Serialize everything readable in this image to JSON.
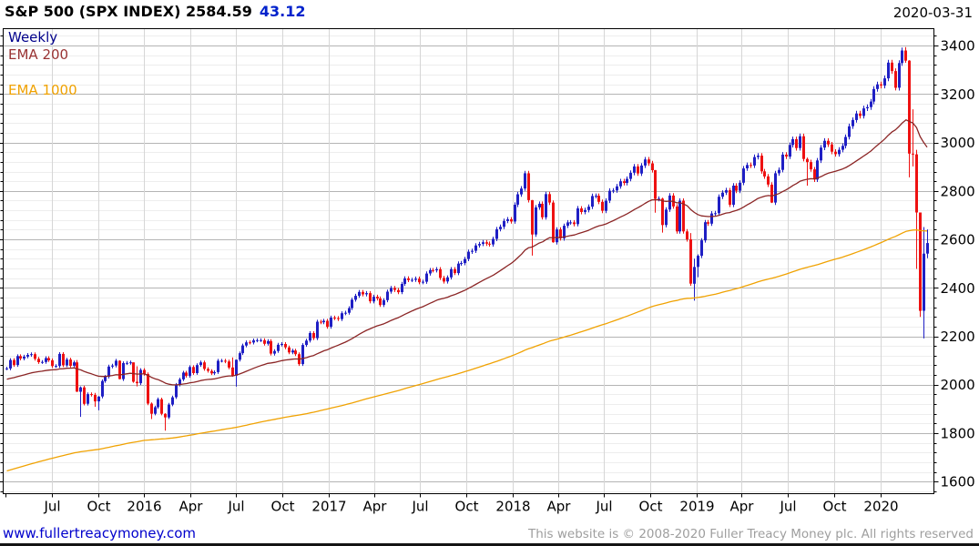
{
  "header": {
    "title_main": "S&P 500 (SPX INDEX) 2584.59",
    "change": "43.12",
    "change_color": "#0022cc",
    "date": "2020-03-31"
  },
  "legend": {
    "weekly": "Weekly",
    "ema200": "EMA 200",
    "ema1000": "EMA 1000"
  },
  "footer": {
    "link": "www.fullertreacymoney.com",
    "copyright": "This website is © 2008-2020 Fuller Treacy Money plc. All rights reserved"
  },
  "chart_data": {
    "type": "candlestick",
    "title": "S&P 500 (SPX INDEX)",
    "timeframe": "Weekly",
    "last_close": 2584.59,
    "change": 43.12,
    "start_date": "2015-04-03",
    "week_interval_days": 7,
    "y_axis": {
      "min": 1550,
      "max": 3470,
      "tick_minor": 40,
      "tick_major": 200,
      "labels": [
        1600,
        1800,
        2000,
        2200,
        2400,
        2600,
        2800,
        3000,
        3200,
        3400
      ]
    },
    "x_ticks": [
      {
        "label": "",
        "date": "2015-04-01"
      },
      {
        "label": "Jul",
        "date": "2015-07-01"
      },
      {
        "label": "Oct",
        "date": "2015-10-01"
      },
      {
        "label": "2016",
        "date": "2016-01-01"
      },
      {
        "label": "Apr",
        "date": "2016-04-01"
      },
      {
        "label": "Jul",
        "date": "2016-07-01"
      },
      {
        "label": "Oct",
        "date": "2016-10-01"
      },
      {
        "label": "2017",
        "date": "2017-01-01"
      },
      {
        "label": "Apr",
        "date": "2017-04-01"
      },
      {
        "label": "Jul",
        "date": "2017-07-01"
      },
      {
        "label": "Oct",
        "date": "2017-10-01"
      },
      {
        "label": "2018",
        "date": "2018-01-01"
      },
      {
        "label": "Apr",
        "date": "2018-04-01"
      },
      {
        "label": "Jul",
        "date": "2018-07-01"
      },
      {
        "label": "Oct",
        "date": "2018-10-01"
      },
      {
        "label": "2019",
        "date": "2019-01-01"
      },
      {
        "label": "Apr",
        "date": "2019-04-01"
      },
      {
        "label": "Jul",
        "date": "2019-07-01"
      },
      {
        "label": "Oct",
        "date": "2019-10-01"
      },
      {
        "label": "2020",
        "date": "2020-01-01"
      }
    ],
    "weeks_format": "close OR [close, high, low]; open = previous close",
    "weeks": [
      2067,
      2102,
      2081,
      2118,
      2108,
      2116,
      2123,
      2126,
      2107,
      2093,
      2094,
      2110,
      2101,
      2077,
      2077,
      2127,
      2080,
      2104,
      2078,
      2092,
      [
        1971,
        2102,
        1970
      ],
      [
        1989,
        1993,
        1867
      ],
      1921,
      1961,
      1958,
      [
        1931,
        1966,
        1909
      ],
      [
        1951,
        1953,
        1894
      ],
      2015,
      2033,
      2075,
      2079,
      2099,
      [
        2023,
        2101,
        2022
      ],
      2089,
      2090,
      2092,
      [
        2012,
        2091,
        2008
      ],
      [
        2006,
        2076,
        1993
      ],
      2061,
      2044,
      1922,
      [
        1880,
        1927,
        1858
      ],
      1907,
      1940,
      1880,
      [
        1865,
        1882,
        1810
      ],
      1918,
      1948,
      2000,
      2022,
      2050,
      2036,
      2073,
      2048,
      2081,
      2092,
      2065,
      2057,
      2047,
      2052,
      2099,
      2099,
      2096,
      2071,
      [
        2037,
        2113,
        2033
      ],
      [
        2103,
        2104,
        1992
      ],
      2130,
      2162,
      2175,
      2174,
      2183,
      2184,
      2184,
      2169,
      2180,
      2128,
      2139,
      2165,
      2168,
      2154,
      2133,
      2141,
      2126,
      2085,
      2164,
      2182,
      2213,
      2192,
      2260,
      2258,
      2264,
      2239,
      2277,
      2275,
      2271,
      2295,
      2297,
      2316,
      2351,
      2367,
      2383,
      2373,
      2378,
      2344,
      2363,
      2356,
      2329,
      2349,
      2384,
      2399,
      2391,
      2382,
      2416,
      2439,
      2432,
      2433,
      2438,
      2423,
      2425,
      2459,
      2473,
      2472,
      2477,
      2441,
      2426,
      2443,
      2477,
      2461,
      2500,
      2502,
      2519,
      2549,
      2553,
      2575,
      2581,
      2588,
      2582,
      2579,
      2602,
      2642,
      2652,
      2676,
      2683,
      2674,
      2743,
      2786,
      2810,
      2873,
      2762,
      [
        2620,
        2763,
        2533
      ],
      2732,
      2747,
      2691,
      2787,
      2752,
      [
        2588,
        2761,
        2586
      ],
      2641,
      2604,
      2656,
      2670,
      2670,
      2663,
      2728,
      2713,
      2721,
      2735,
      2779,
      2780,
      2755,
      2718,
      2760,
      2801,
      2802,
      2819,
      2840,
      2833,
      2850,
      2875,
      2901,
      2872,
      2905,
      2930,
      2914,
      2886,
      [
        2767,
        2880,
        2710
      ],
      2768,
      [
        2659,
        2772,
        2628
      ],
      2723,
      2781,
      2736,
      2633,
      2760,
      2633,
      2600,
      [
        2417,
        2626,
        2408
      ],
      [
        2486,
        2520,
        2347
      ],
      [
        2532,
        2538,
        2444
      ],
      2596,
      2671,
      2665,
      2707,
      2708,
      2776,
      2793,
      2803,
      2743,
      2822,
      2801,
      2834,
      2893,
      2907,
      2905,
      2940,
      2946,
      2881,
      2860,
      2826,
      [
        2752,
        2836,
        2750
      ],
      2873,
      2887,
      2950,
      2942,
      2990,
      3014,
      2977,
      3026,
      2932,
      [
        2919,
        2938,
        2822
      ],
      2889,
      2847,
      2926,
      2979,
      3007,
      2992,
      2962,
      2952,
      2970,
      2986,
      3023,
      3067,
      3093,
      3120,
      3110,
      3141,
      3146,
      3169,
      3221,
      3240,
      3235,
      3265,
      3330,
      3295,
      3226,
      3328,
      3380,
      [
        3338,
        3394,
        3329
      ],
      [
        2954,
        3340,
        2856
      ],
      [
        2951,
        3137,
        2901
      ],
      [
        2711,
        2970,
        2478
      ],
      [
        2305,
        2711,
        2280
      ],
      [
        2541,
        2651,
        2191
      ],
      [
        2584.59,
        2641,
        2522
      ]
    ],
    "emas": [
      {
        "name": "EMA 200",
        "k": 0.049,
        "seed": 2020,
        "color": "#8b2525"
      },
      {
        "name": "EMA 1000",
        "k": 0.0093,
        "seed": 1640,
        "color": "#f0a202"
      }
    ],
    "colors": {
      "up": "#1f1fc4",
      "down": "#ee1111",
      "grid_minor": "#ededed",
      "grid_major": "#b4b4b4",
      "grid_vertical": "#d6d6d6",
      "axis": "#000000"
    }
  }
}
